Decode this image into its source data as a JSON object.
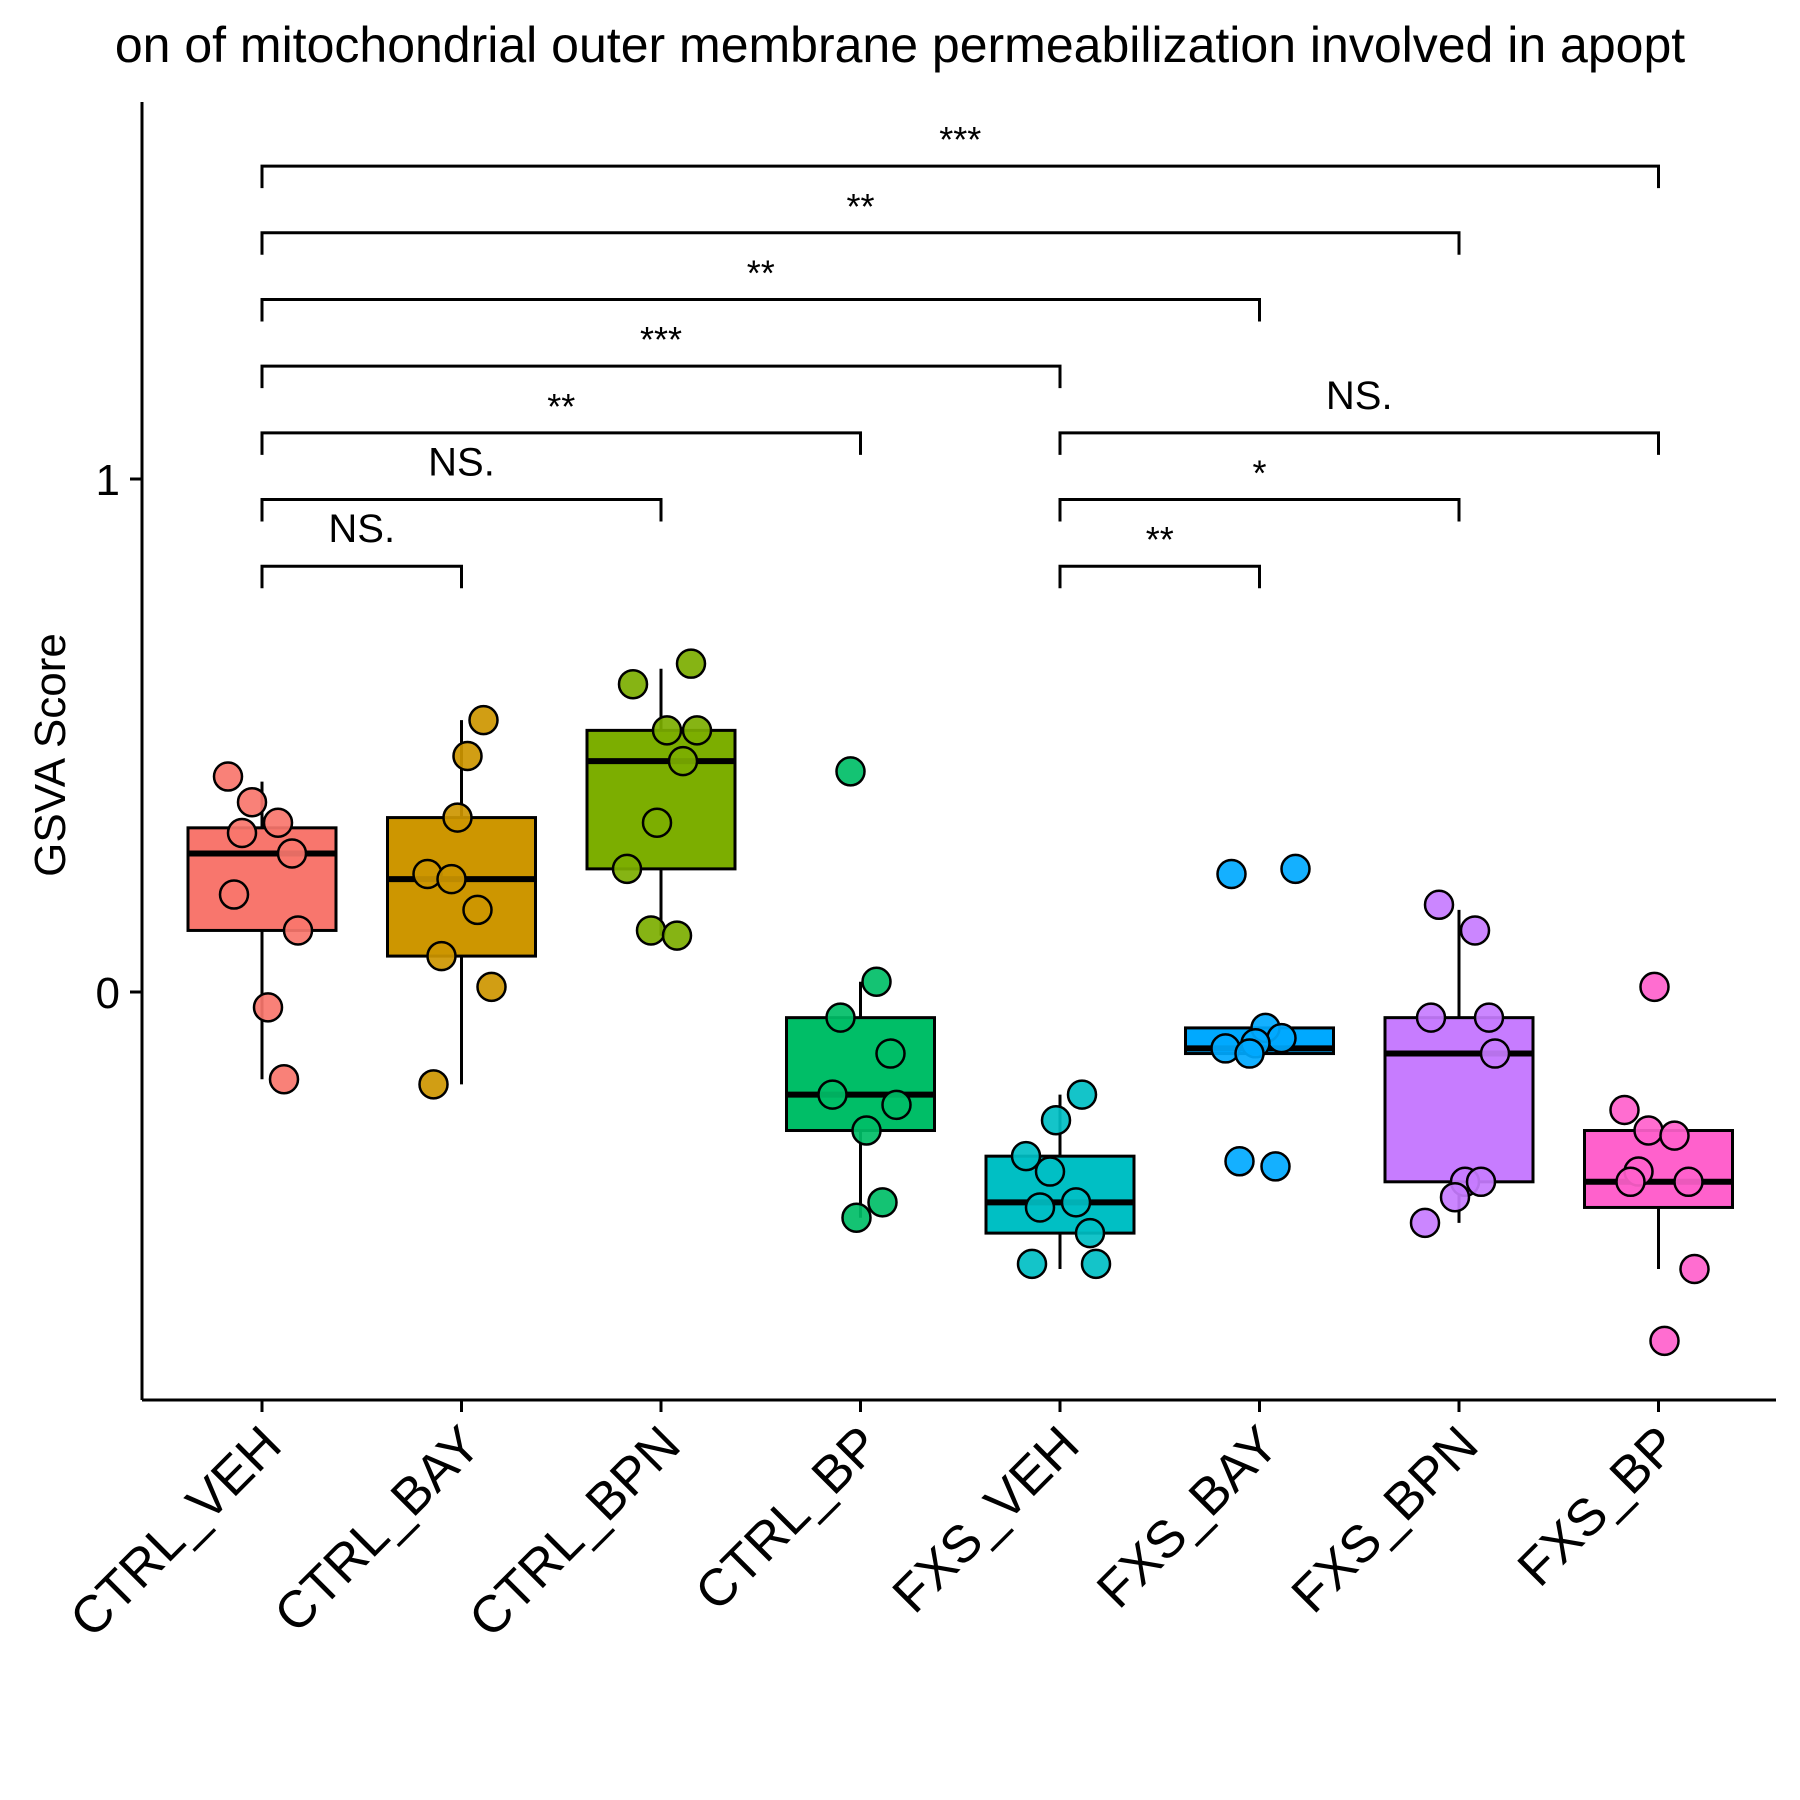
{
  "chart_data": {
    "type": "boxplot",
    "title": "on of mitochondrial outer membrane permeabilization involved in apopt",
    "xlabel": "",
    "ylabel": "GSVA Score",
    "ylim": [
      -0.8,
      1.7
    ],
    "yticks": [
      0,
      1
    ],
    "ytick_labels": [
      "0",
      "1"
    ],
    "grid": false,
    "legend": "none",
    "categories": [
      "CTRL_VEH",
      "CTRL_BAY",
      "CTRL_BPN",
      "CTRL_BP",
      "FXS_VEH",
      "FXS_BAY",
      "FXS_BPN",
      "FXS_BP"
    ],
    "colors": [
      "#F8766D",
      "#CD9600",
      "#7CAE00",
      "#00BE67",
      "#00BFC4",
      "#00A9FF",
      "#C77CFF",
      "#FF61CC"
    ],
    "boxes": [
      {
        "q1": 0.12,
        "median": 0.27,
        "q3": 0.32,
        "whisker_low": -0.17,
        "whisker_high": 0.41
      },
      {
        "q1": 0.07,
        "median": 0.22,
        "q3": 0.34,
        "whisker_low": -0.18,
        "whisker_high": 0.53
      },
      {
        "q1": 0.24,
        "median": 0.45,
        "q3": 0.51,
        "whisker_low": 0.11,
        "whisker_high": 0.63
      },
      {
        "q1": -0.27,
        "median": -0.2,
        "q3": -0.05,
        "whisker_low": -0.44,
        "whisker_high": 0.02
      },
      {
        "q1": -0.47,
        "median": -0.41,
        "q3": -0.32,
        "whisker_low": -0.54,
        "whisker_high": -0.2
      },
      {
        "q1": -0.12,
        "median": -0.11,
        "q3": -0.07,
        "whisker_low": -0.12,
        "whisker_high": -0.07
      },
      {
        "q1": -0.37,
        "median": -0.12,
        "q3": -0.05,
        "whisker_low": -0.45,
        "whisker_high": 0.16
      },
      {
        "q1": -0.42,
        "median": -0.37,
        "q3": -0.27,
        "whisker_low": -0.54,
        "whisker_high": -0.27
      }
    ],
    "points": [
      [
        0.42,
        0.37,
        0.33,
        0.31,
        0.27,
        0.19,
        0.12,
        -0.03,
        -0.17
      ],
      [
        0.46,
        0.53,
        0.34,
        0.23,
        0.22,
        0.16,
        0.07,
        0.01,
        -0.18
      ],
      [
        0.64,
        0.6,
        0.51,
        0.51,
        0.45,
        0.33,
        0.24,
        0.12,
        0.11
      ],
      [
        0.43,
        0.02,
        -0.05,
        -0.12,
        -0.2,
        -0.22,
        -0.27,
        -0.41,
        -0.44
      ],
      [
        -0.2,
        -0.25,
        -0.32,
        -0.35,
        -0.41,
        -0.42,
        -0.47,
        -0.53,
        -0.53
      ],
      [
        0.23,
        0.24,
        -0.07,
        -0.09,
        -0.1,
        -0.11,
        -0.12,
        -0.34,
        -0.33
      ],
      [
        0.12,
        0.17,
        -0.05,
        -0.05,
        -0.12,
        -0.37,
        -0.37,
        -0.4,
        -0.45
      ],
      [
        0.01,
        -0.23,
        -0.27,
        -0.28,
        -0.35,
        -0.37,
        -0.37,
        -0.54,
        -0.68
      ]
    ],
    "comparisons": [
      {
        "from": "CTRL_VEH",
        "to": "CTRL_BAY",
        "label": "NS.",
        "level": 0.83
      },
      {
        "from": "CTRL_VEH",
        "to": "CTRL_BPN",
        "label": "NS.",
        "level": 0.96
      },
      {
        "from": "CTRL_VEH",
        "to": "CTRL_BP",
        "label": "**",
        "level": 1.09
      },
      {
        "from": "CTRL_VEH",
        "to": "FXS_VEH",
        "label": "***",
        "level": 1.22
      },
      {
        "from": "CTRL_VEH",
        "to": "FXS_BAY",
        "label": "**",
        "level": 1.35
      },
      {
        "from": "CTRL_VEH",
        "to": "FXS_BPN",
        "label": "**",
        "level": 1.48
      },
      {
        "from": "CTRL_VEH",
        "to": "FXS_BP",
        "label": "***",
        "level": 1.61
      },
      {
        "from": "FXS_VEH",
        "to": "FXS_BAY",
        "label": "**",
        "level": 0.83
      },
      {
        "from": "FXS_VEH",
        "to": "FXS_BPN",
        "label": "*",
        "level": 0.96
      },
      {
        "from": "FXS_VEH",
        "to": "FXS_BP",
        "label": "NS.",
        "level": 1.09
      }
    ]
  }
}
